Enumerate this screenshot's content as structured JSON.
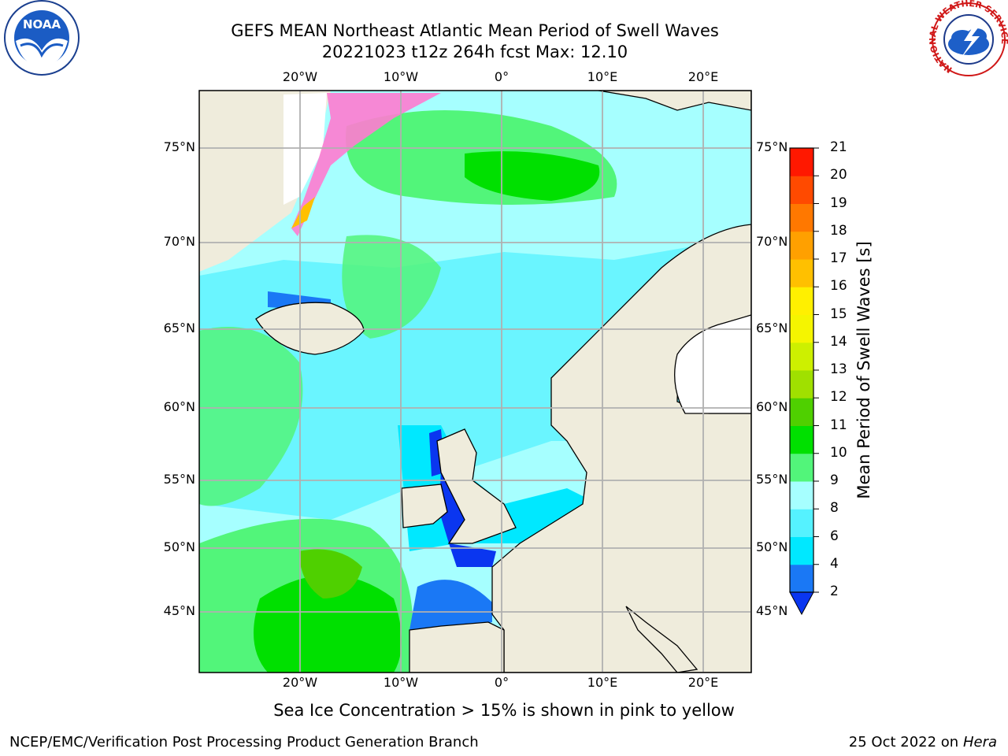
{
  "header": {
    "title_line1": "GEFS MEAN Northeast Atlantic Mean Period of Swell Waves",
    "title_line2": "20221023 t12z 264h fcst   Max: 12.10"
  },
  "logos": {
    "left": {
      "icon": "noaa-logo-icon",
      "text": "NOAA"
    },
    "right": {
      "icon": "national-weather-service-logo-icon",
      "text": "NATIONAL WEATHER SERVICE"
    }
  },
  "map": {
    "lon_ticks": [
      "20°W",
      "10°W",
      "0°",
      "10°E",
      "20°E"
    ],
    "lat_ticks": [
      "75°N",
      "70°N",
      "65°N",
      "60°N",
      "55°N",
      "50°N",
      "45°N"
    ],
    "colors": {
      "land": "#efecdc",
      "ice": "#ffffff",
      "grid": "#b0b0b0",
      "coast": "#000000"
    }
  },
  "colorbar": {
    "label": "Mean Period of Swell Waves [s]",
    "ticks": [
      "2",
      "4",
      "6",
      "8",
      "9",
      "10",
      "11",
      "12",
      "13",
      "14",
      "15",
      "16",
      "17",
      "18",
      "19",
      "20",
      "21"
    ],
    "colors": [
      "#0a36f0",
      "#1a78f5",
      "#00e8ff",
      "#55f2ff",
      "#a6ffff",
      "#52f57a",
      "#00e000",
      "#4fd000",
      "#a0e000",
      "#cdf000",
      "#f5f500",
      "#fff000",
      "#ffc000",
      "#ffa000",
      "#ff7800",
      "#ff4a00",
      "#ff1800"
    ]
  },
  "caption": "Sea Ice Concentration > 15% is shown in pink to yellow",
  "footer": {
    "left": "NCEP/EMC/Verification Post Processing Product Generation Branch",
    "right_date": "25 Oct 2022 on ",
    "right_host": "Hera"
  }
}
